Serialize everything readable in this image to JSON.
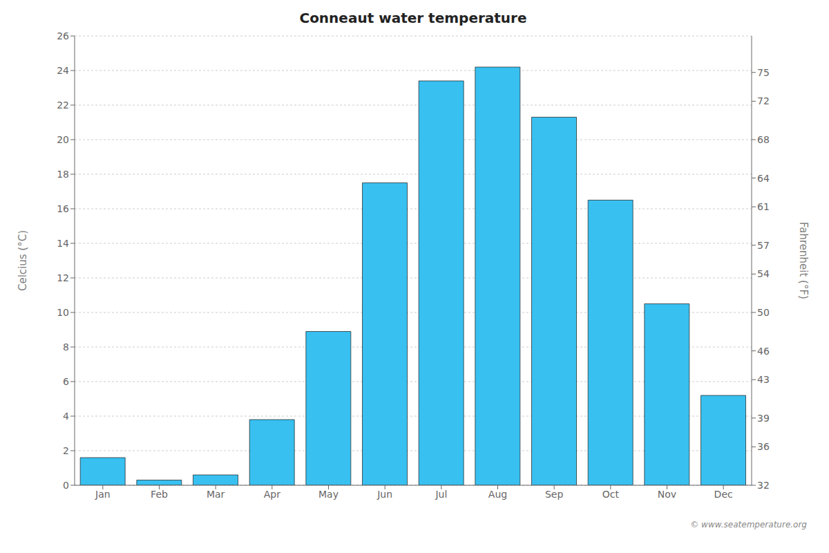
{
  "chart_data": {
    "type": "bar",
    "title": "Conneaut water temperature",
    "categories": [
      "Jan",
      "Feb",
      "Mar",
      "Apr",
      "May",
      "Jun",
      "Jul",
      "Aug",
      "Sep",
      "Oct",
      "Nov",
      "Dec"
    ],
    "values": [
      1.6,
      0.3,
      0.6,
      3.8,
      8.9,
      17.5,
      23.4,
      24.2,
      21.3,
      16.5,
      10.5,
      5.2
    ],
    "color": "#38c0f0",
    "ylabel": "Celcius (°C)",
    "y2label": "Fahrenheit (°F)",
    "ylim": [
      0,
      26
    ],
    "yticks": [
      0,
      2,
      4,
      6,
      8,
      10,
      12,
      14,
      16,
      18,
      20,
      22,
      24,
      26
    ],
    "y2lim": [
      32,
      78.8
    ],
    "y2ticks": [
      32,
      36,
      39,
      43,
      46,
      50,
      54,
      57,
      61,
      64,
      68,
      72,
      75
    ],
    "grid": true,
    "annotations": [
      "© www.seatemperature.org"
    ]
  }
}
